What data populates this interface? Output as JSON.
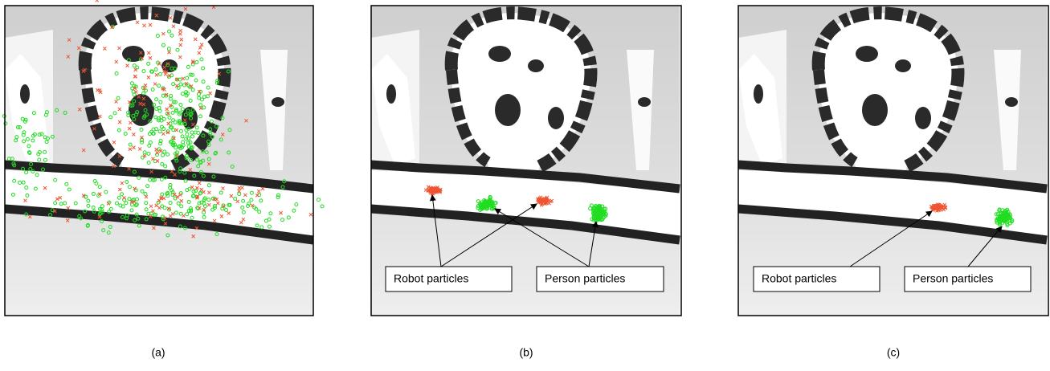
{
  "panels": [
    {
      "caption": "(a)"
    },
    {
      "caption": "(b)",
      "labels": [
        "Robot particles",
        "Person particles"
      ]
    },
    {
      "caption": "(c)",
      "labels": [
        "Robot particles",
        "Person particles"
      ]
    }
  ]
}
